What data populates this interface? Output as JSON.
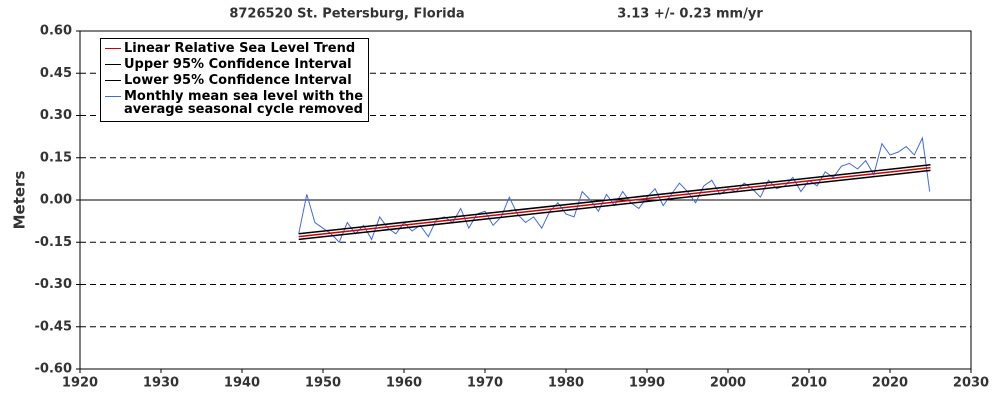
{
  "chart_data": {
    "type": "line",
    "title": "8726520 St. Petersburg, Florida",
    "subtitle": "3.13 +/-  0.23 mm/yr",
    "ylabel": "Meters",
    "xlim": [
      1920,
      2030
    ],
    "ylim": [
      -0.6,
      0.6
    ],
    "xticks": [
      1920,
      1930,
      1940,
      1950,
      1960,
      1970,
      1980,
      1990,
      2000,
      2010,
      2020,
      2030
    ],
    "yticks": [
      {
        "value": -0.6,
        "label": "-0.60"
      },
      -0.45,
      {
        "value": -0.3,
        "label": "-0.30"
      },
      -0.15,
      {
        "value": 0,
        "label": "0.00"
      },
      0.15,
      {
        "value": 0.3,
        "label": "0.30"
      },
      0.45,
      {
        "value": 0.6,
        "label": "0.60"
      }
    ],
    "grid": true,
    "legend": "upper left",
    "series": [
      {
        "name": "Linear Relative Sea Level Trend",
        "color": "#cc0000",
        "x": [
          1947,
          2025
        ],
        "values": [
          -0.13,
          0.115
        ]
      },
      {
        "name": "Upper 95% Confidence Interval",
        "color": "#000000",
        "x": [
          1947,
          2025
        ],
        "values": [
          -0.12,
          0.125
        ]
      },
      {
        "name": "Lower 95% Confidence Interval",
        "color": "#000000",
        "x": [
          1947,
          2025
        ],
        "values": [
          -0.14,
          0.105
        ]
      },
      {
        "name": "Monthly mean sea level with the average seasonal cycle removed",
        "color": "#4169e1",
        "x": [
          1947,
          1948,
          1949,
          1950,
          1951,
          1952,
          1953,
          1954,
          1955,
          1956,
          1957,
          1958,
          1959,
          1960,
          1961,
          1962,
          1963,
          1964,
          1965,
          1966,
          1967,
          1968,
          1969,
          1970,
          1971,
          1972,
          1973,
          1974,
          1975,
          1976,
          1977,
          1978,
          1979,
          1980,
          1981,
          1982,
          1983,
          1984,
          1985,
          1986,
          1987,
          1988,
          1989,
          1990,
          1991,
          1992,
          1993,
          1994,
          1995,
          1996,
          1997,
          1998,
          1999,
          2000,
          2001,
          2002,
          2003,
          2004,
          2005,
          2006,
          2007,
          2008,
          2009,
          2010,
          2011,
          2012,
          2013,
          2014,
          2015,
          2016,
          2017,
          2018,
          2019,
          2020,
          2021,
          2022,
          2023,
          2024,
          2024.9
        ],
        "values": [
          -0.12,
          0.02,
          -0.08,
          -0.1,
          -0.12,
          -0.15,
          -0.08,
          -0.12,
          -0.09,
          -0.14,
          -0.06,
          -0.1,
          -0.12,
          -0.08,
          -0.11,
          -0.09,
          -0.13,
          -0.07,
          -0.06,
          -0.08,
          -0.03,
          -0.1,
          -0.05,
          -0.04,
          -0.09,
          -0.06,
          0.01,
          -0.05,
          -0.08,
          -0.06,
          -0.1,
          -0.04,
          -0.01,
          -0.05,
          -0.06,
          0.03,
          0.0,
          -0.04,
          0.02,
          -0.02,
          0.03,
          -0.01,
          -0.03,
          0.01,
          0.04,
          -0.02,
          0.02,
          0.06,
          0.03,
          -0.01,
          0.05,
          0.07,
          0.02,
          0.04,
          0.03,
          0.06,
          0.04,
          0.01,
          0.07,
          0.04,
          0.05,
          0.08,
          0.03,
          0.07,
          0.05,
          0.1,
          0.08,
          0.12,
          0.13,
          0.11,
          0.14,
          0.09,
          0.2,
          0.16,
          0.17,
          0.19,
          0.16,
          0.22,
          0.03
        ]
      }
    ]
  }
}
